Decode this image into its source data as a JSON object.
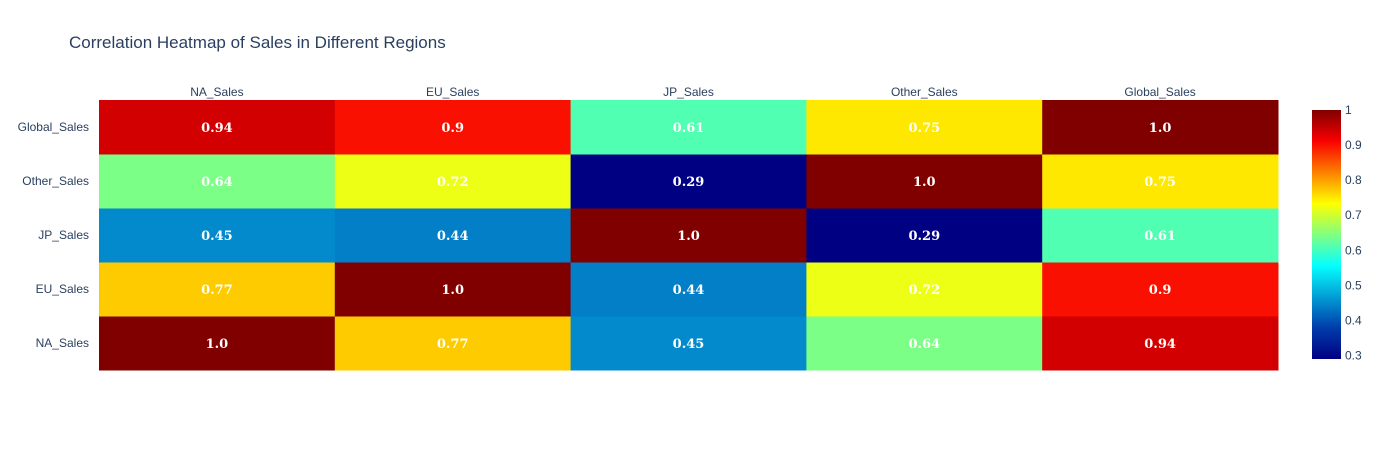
{
  "chart_data": {
    "type": "heatmap",
    "title": "Correlation Heatmap of Sales in Different Regions",
    "x_categories": [
      "NA_Sales",
      "EU_Sales",
      "JP_Sales",
      "Other_Sales",
      "Global_Sales"
    ],
    "y_categories": [
      "NA_Sales",
      "EU_Sales",
      "JP_Sales",
      "Other_Sales",
      "Global_Sales"
    ],
    "x_axis_side": "top",
    "y_axis_order": "bottom-to-top",
    "values": [
      [
        1.0,
        0.77,
        0.45,
        0.64,
        0.94
      ],
      [
        0.77,
        1.0,
        0.44,
        0.72,
        0.9
      ],
      [
        0.45,
        0.44,
        1.0,
        0.29,
        0.61
      ],
      [
        0.64,
        0.72,
        0.29,
        1.0,
        0.75
      ],
      [
        0.94,
        0.9,
        0.61,
        0.75,
        1.0
      ]
    ],
    "labels": [
      [
        "1.0",
        "0.77",
        "0.45",
        "0.64",
        "0.94"
      ],
      [
        "0.77",
        "1.0",
        "0.44",
        "0.72",
        "0.9"
      ],
      [
        "0.45",
        "0.44",
        "1.0",
        "0.29",
        "0.61"
      ],
      [
        "0.64",
        "0.72",
        "0.29",
        "1.0",
        "0.75"
      ],
      [
        "0.94",
        "0.9",
        "0.61",
        "0.75",
        "1.0"
      ]
    ],
    "zmin": 0.29,
    "zmax": 1.0,
    "colorscale": "Jet",
    "colorbar_ticks": [
      "1",
      "0.9",
      "0.8",
      "0.7",
      "0.6",
      "0.5",
      "0.4",
      "0.3"
    ],
    "colorbar_tick_values": [
      1,
      0.9,
      0.8,
      0.7,
      0.6,
      0.5,
      0.4,
      0.3
    ]
  }
}
